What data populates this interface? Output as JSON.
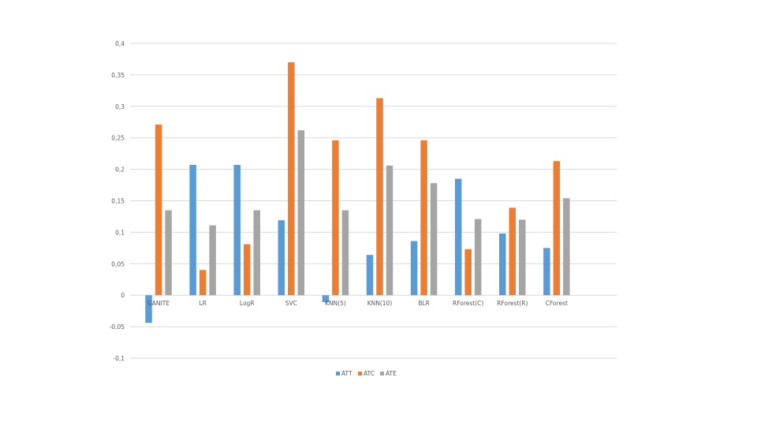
{
  "chart_data": {
    "type": "bar",
    "categories": [
      "GANITE",
      "LR",
      "LogR",
      "SVC",
      "KNN(5)",
      "KNN(10)",
      "BLR",
      "RForest(C)",
      "RForest(R)",
      "CForest"
    ],
    "series": [
      {
        "name": "ATT",
        "color": "#5b9bd5",
        "values": [
          -0.044,
          0.207,
          0.207,
          0.119,
          -0.011,
          0.064,
          0.086,
          0.185,
          0.098,
          0.075
        ]
      },
      {
        "name": "ATC",
        "color": "#ed7d31",
        "values": [
          0.271,
          0.04,
          0.081,
          0.37,
          0.246,
          0.313,
          0.246,
          0.073,
          0.139,
          0.213
        ]
      },
      {
        "name": "ATE",
        "color": "#a5a5a5",
        "values": [
          0.135,
          0.111,
          0.135,
          0.262,
          0.135,
          0.206,
          0.178,
          0.121,
          0.12,
          0.154
        ]
      }
    ],
    "ylim": [
      -0.1,
      0.4
    ],
    "yticks": [
      -0.1,
      -0.05,
      0,
      0.05,
      0.1,
      0.15,
      0.2,
      0.25,
      0.3,
      0.35,
      0.4
    ],
    "ytick_labels": [
      "-0,1",
      "-0,05",
      "0",
      "0,05",
      "0,1",
      "0,15",
      "0,2",
      "0,25",
      "0,3",
      "0,35",
      "0,4"
    ],
    "grid": true,
    "legend_position": "bottom",
    "title": "",
    "xlabel": "",
    "ylabel": ""
  }
}
